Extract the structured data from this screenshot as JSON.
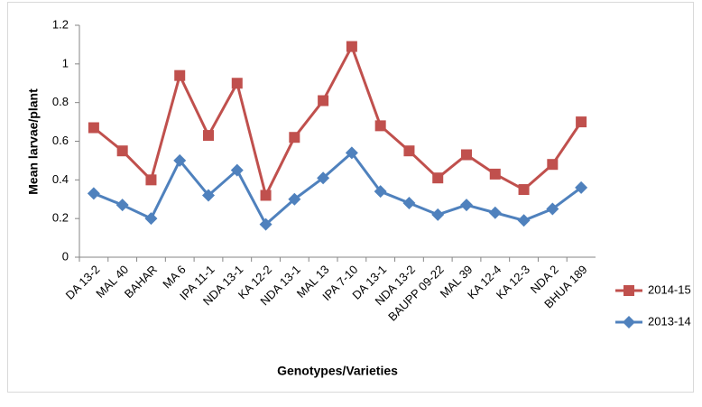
{
  "chart_data": {
    "type": "line",
    "x_label": "Genotypes/Varieties",
    "y_label": "Mean larvae/plant",
    "categories": [
      "DA 13-2",
      "MAL 40",
      "BAHAR",
      "MA 6",
      "IPA 11-1",
      "NDA 13-1",
      "KA 12-2",
      "NDA 13-1",
      "MAL 13",
      "IPA 7-10",
      "DA 13-1",
      "NDA 13-2",
      "BAUPP 09-22",
      "MAL 39",
      "KA 12-4",
      "KA 12-3",
      "NDA 2",
      "BHUA 189"
    ],
    "series": [
      {
        "name": "2014-15",
        "color": "#c0504d",
        "marker": "square",
        "values": [
          0.67,
          0.55,
          0.4,
          0.94,
          0.63,
          0.9,
          0.32,
          0.62,
          0.81,
          1.09,
          0.68,
          0.55,
          0.41,
          0.53,
          0.43,
          0.35,
          0.48,
          0.7
        ]
      },
      {
        "name": "2013-14",
        "color": "#4f81bd",
        "marker": "diamond",
        "values": [
          0.33,
          0.27,
          0.2,
          0.5,
          0.32,
          0.45,
          0.17,
          0.3,
          0.41,
          0.54,
          0.34,
          0.28,
          0.22,
          0.27,
          0.23,
          0.19,
          0.25,
          0.36
        ]
      }
    ],
    "ylim": [
      0,
      1.2
    ],
    "yticks": [
      0,
      0.2,
      0.4,
      0.6,
      0.8,
      1,
      1.2
    ],
    "grid": false,
    "legend": "right"
  }
}
